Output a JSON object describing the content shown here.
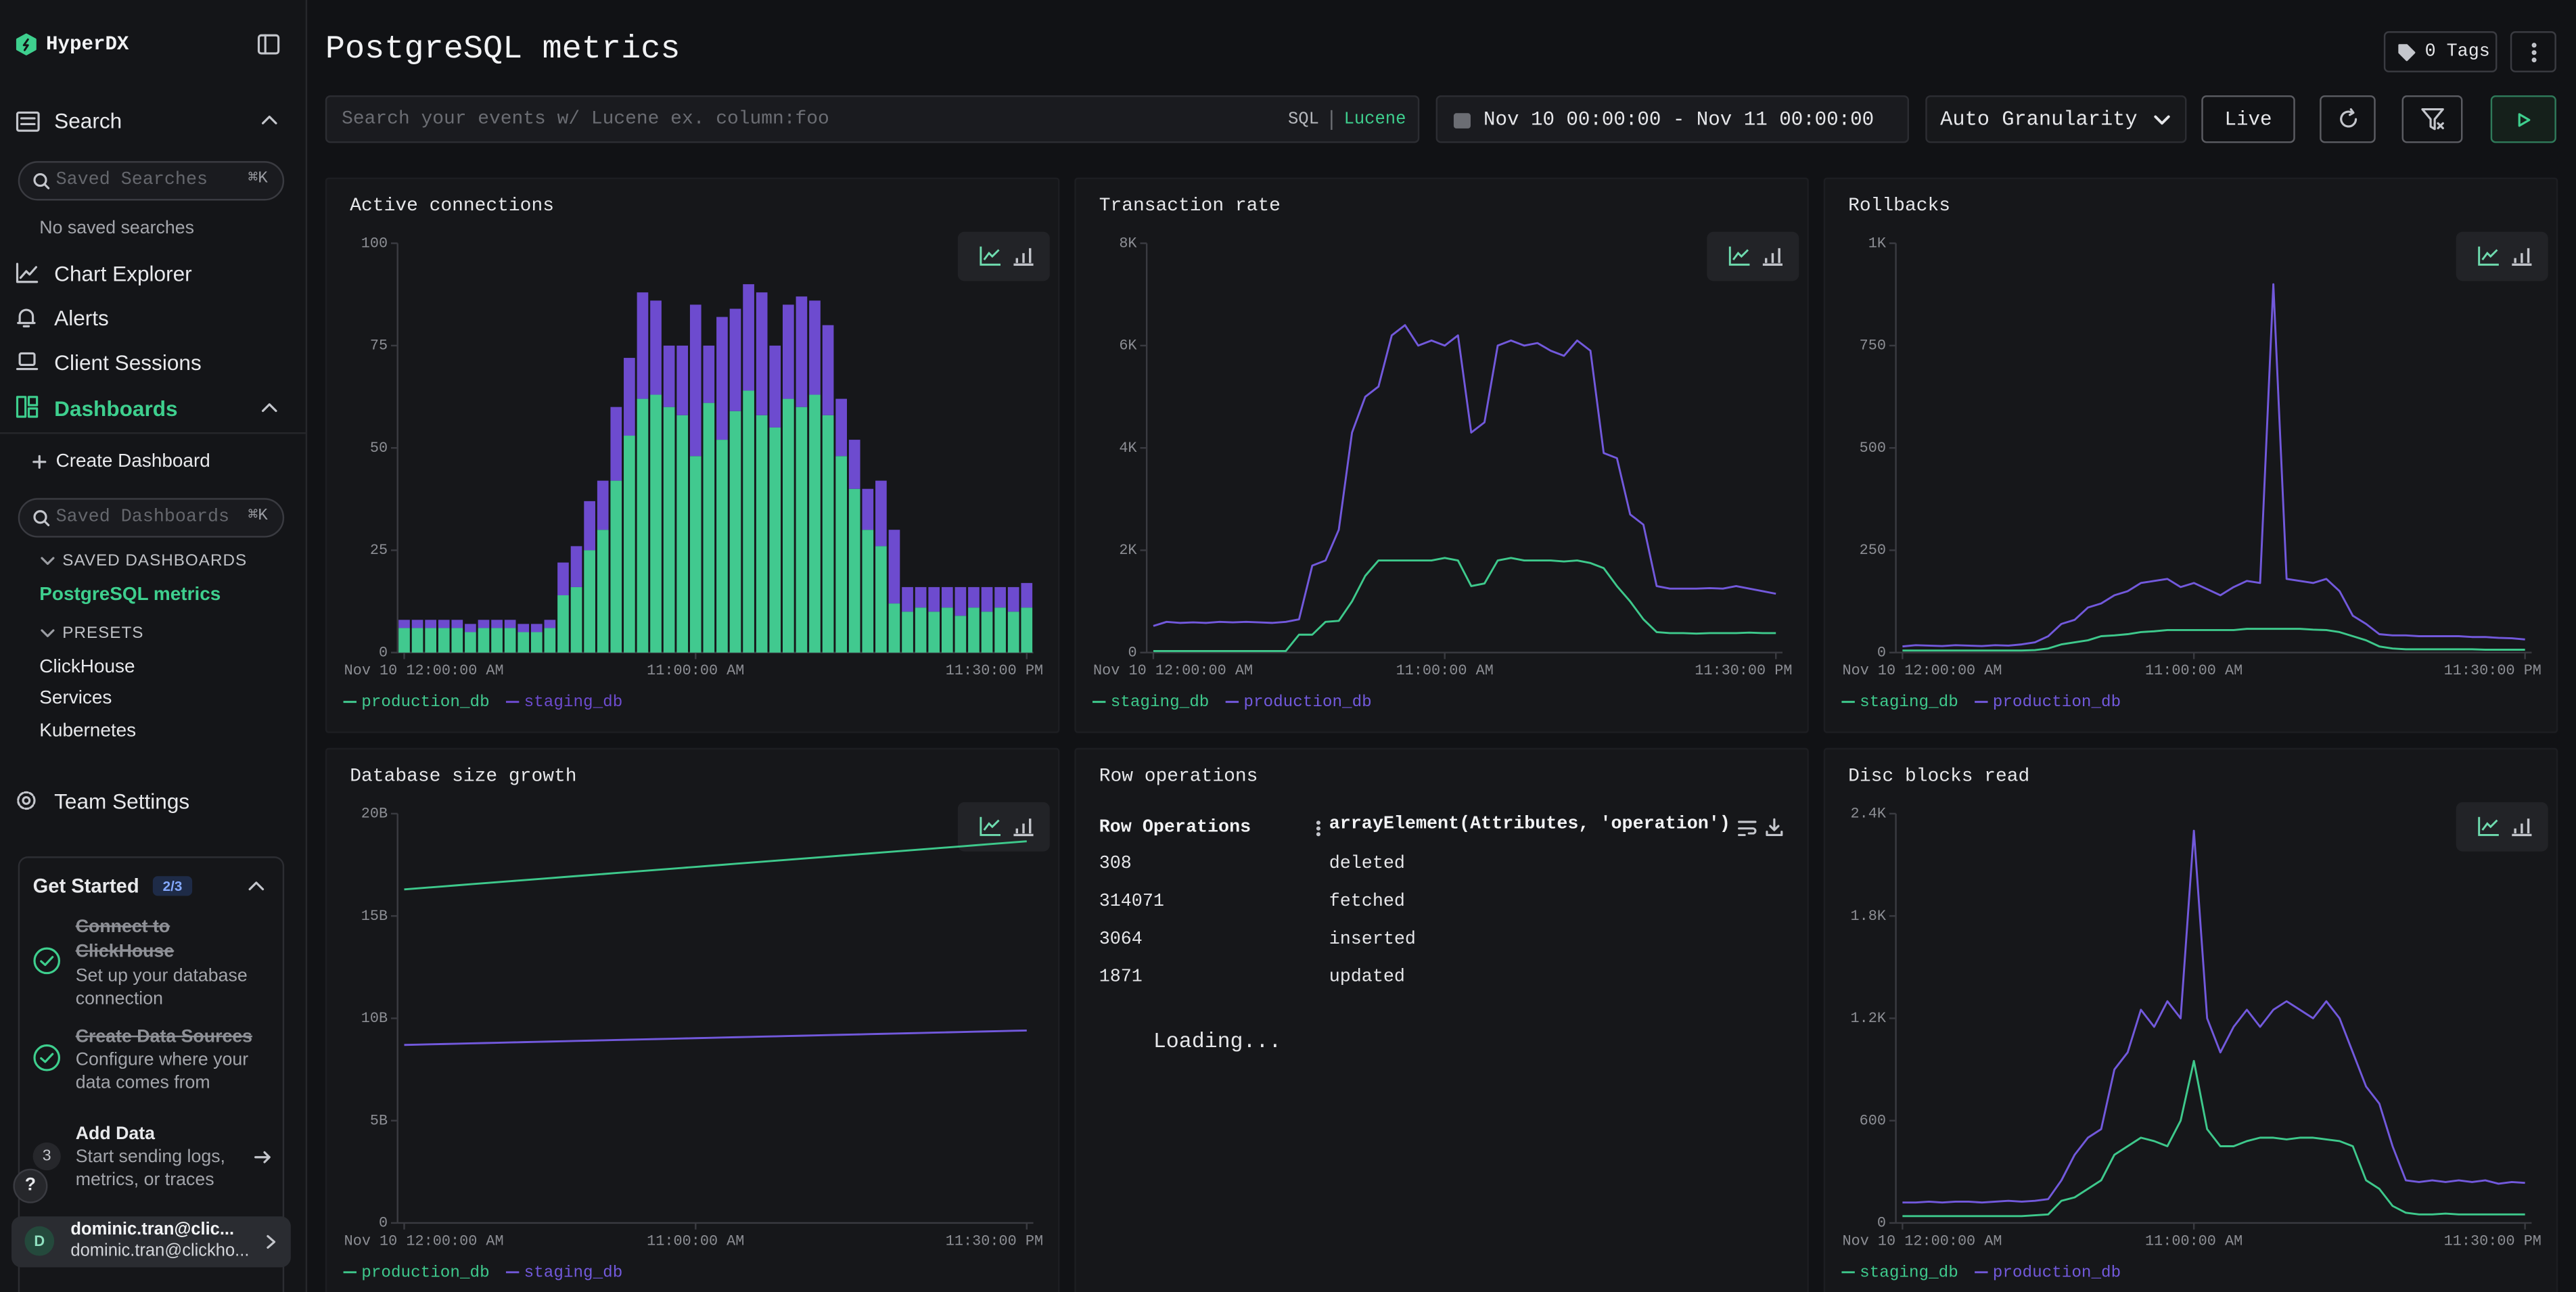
{
  "sidebar": {
    "brand": "HyperDX",
    "search": "Search",
    "saved_searches_placeholder": "Saved Searches",
    "shortcut": "⌘K",
    "no_saved_searches": "No saved searches",
    "nav": [
      "Chart Explorer",
      "Alerts",
      "Client Sessions"
    ],
    "dashboards": "Dashboards",
    "create_dashboard": "Create Dashboard",
    "saved_dashboards_placeholder": "Saved Dashboards",
    "saved_dashboards_heading": "SAVED DASHBOARDS",
    "saved_dashboards": [
      "PostgreSQL metrics"
    ],
    "presets_heading": "PRESETS",
    "presets": [
      "ClickHouse",
      "Services",
      "Kubernetes"
    ],
    "team_settings": "Team Settings",
    "get_started": {
      "title": "Get Started",
      "progress": "2/3",
      "steps": [
        {
          "title": "Connect to ClickHouse",
          "description": "Set up your database connection",
          "done": true
        },
        {
          "title": "Create Data Sources",
          "description": "Configure where your data comes from",
          "done": true
        },
        {
          "number": 3,
          "title": "Add Data",
          "description": "Start sending logs, metrics, or traces",
          "done": false
        }
      ]
    },
    "help": "?",
    "user": {
      "initial": "D",
      "name": "dominic.tran@clic...",
      "email": "dominic.tran@clickho..."
    }
  },
  "header": {
    "title": "PostgreSQL metrics",
    "tags": "0 Tags",
    "search_placeholder": "Search your events w/ Lucene ex. column:foo",
    "query_languages": [
      "SQL",
      "Lucene"
    ],
    "time_range": "Nov 10 00:00:00 - Nov 11 00:00:00",
    "granularity": "Auto Granularity",
    "live": "Live"
  },
  "chart_data": [
    {
      "type": "bar",
      "stacked": true,
      "title": "Active connections",
      "categories": [
        "Nov 10 12:00:00 AM",
        null,
        null,
        null,
        null,
        null,
        null,
        null,
        null,
        null,
        null,
        null,
        null,
        null,
        null,
        null,
        null,
        null,
        null,
        null,
        null,
        null,
        "11:00:00 AM",
        null,
        null,
        null,
        null,
        null,
        null,
        null,
        null,
        null,
        null,
        null,
        null,
        null,
        null,
        null,
        null,
        null,
        null,
        null,
        null,
        null,
        null,
        null,
        null,
        "11:30:00 PM"
      ],
      "ylim": [
        0,
        100
      ],
      "yticks": [
        0,
        25,
        50,
        75,
        100
      ],
      "series": [
        {
          "name": "production_db",
          "color": "#41c98f",
          "values": [
            6,
            6,
            6,
            6,
            6,
            5,
            6,
            6,
            6,
            5,
            5,
            6,
            14,
            16,
            25,
            30,
            42,
            53,
            62,
            63,
            60,
            58,
            48,
            61,
            52,
            59,
            64,
            58,
            55,
            62,
            60,
            63,
            58,
            48,
            40,
            30,
            26,
            12,
            10,
            11,
            10,
            11,
            9,
            11,
            10,
            11,
            10,
            11
          ]
        },
        {
          "name": "staging_db",
          "color": "#6d4bcf",
          "values": [
            2,
            2,
            2,
            2,
            2,
            2,
            2,
            2,
            2,
            2,
            2,
            2,
            8,
            10,
            12,
            12,
            18,
            19,
            26,
            23,
            15,
            17,
            37,
            14,
            30,
            25,
            26,
            30,
            20,
            23,
            27,
            23,
            22,
            14,
            12,
            10,
            16,
            18,
            6,
            5,
            6,
            5,
            7,
            5,
            6,
            5,
            6,
            6
          ]
        }
      ]
    },
    {
      "type": "line",
      "title": "Transaction rate",
      "categories": [
        "Nov 10 12:00:00 AM",
        null,
        null,
        null,
        null,
        null,
        null,
        null,
        null,
        null,
        null,
        null,
        null,
        null,
        null,
        null,
        null,
        null,
        null,
        null,
        null,
        null,
        "11:00:00 AM",
        null,
        null,
        null,
        null,
        null,
        null,
        null,
        null,
        null,
        null,
        null,
        null,
        null,
        null,
        null,
        null,
        null,
        null,
        null,
        null,
        null,
        null,
        null,
        null,
        "11:30:00 PM"
      ],
      "ylim": [
        0,
        8000
      ],
      "yticks": [
        0,
        {
          "value": 2000,
          "label": "2K"
        },
        {
          "value": 4000,
          "label": "4K"
        },
        {
          "value": 6000,
          "label": "6K"
        },
        {
          "value": 8000,
          "label": "8K"
        }
      ],
      "series": [
        {
          "name": "staging_db",
          "color": "#3ec98c",
          "values": [
            30,
            30,
            30,
            30,
            30,
            30,
            30,
            30,
            30,
            30,
            30,
            350,
            350,
            600,
            620,
            1000,
            1500,
            1800,
            1800,
            1800,
            1800,
            1800,
            1850,
            1800,
            1300,
            1350,
            1800,
            1850,
            1800,
            1800,
            1800,
            1780,
            1800,
            1750,
            1650,
            1300,
            1000,
            650,
            400,
            380,
            380,
            370,
            380,
            380,
            380,
            390,
            380,
            380
          ]
        },
        {
          "name": "production_db",
          "color": "#7259dc",
          "values": [
            520,
            600,
            580,
            590,
            580,
            600,
            590,
            600,
            590,
            580,
            600,
            650,
            1700,
            1800,
            2400,
            4300,
            5000,
            5200,
            6200,
            6400,
            6000,
            6100,
            6000,
            6200,
            4300,
            4500,
            6000,
            6100,
            6000,
            6050,
            5900,
            5800,
            6100,
            5900,
            3900,
            3800,
            2700,
            2500,
            1300,
            1250,
            1250,
            1250,
            1260,
            1250,
            1300,
            1250,
            1200,
            1150
          ]
        }
      ]
    },
    {
      "type": "line",
      "title": "Rollbacks",
      "categories": [
        "Nov 10 12:00:00 AM",
        null,
        null,
        null,
        null,
        null,
        null,
        null,
        null,
        null,
        null,
        null,
        null,
        null,
        null,
        null,
        null,
        null,
        null,
        null,
        null,
        null,
        "11:00:00 AM",
        null,
        null,
        null,
        null,
        null,
        null,
        null,
        null,
        null,
        null,
        null,
        null,
        null,
        null,
        null,
        null,
        null,
        null,
        null,
        null,
        null,
        null,
        null,
        null,
        "11:30:00 PM"
      ],
      "ylim": [
        0,
        1000
      ],
      "yticks": [
        0,
        250,
        500,
        750,
        {
          "value": 1000,
          "label": "1K"
        }
      ],
      "series": [
        {
          "name": "staging_db",
          "color": "#3ec98c",
          "values": [
            5,
            5,
            5,
            5,
            5,
            5,
            5,
            5,
            5,
            5,
            6,
            10,
            20,
            25,
            30,
            40,
            42,
            45,
            50,
            52,
            55,
            55,
            55,
            55,
            55,
            55,
            58,
            58,
            58,
            58,
            58,
            56,
            55,
            50,
            40,
            30,
            15,
            10,
            8,
            8,
            8,
            8,
            8,
            8,
            7,
            7,
            7,
            7
          ]
        },
        {
          "name": "production_db",
          "color": "#7259dc",
          "values": [
            15,
            18,
            17,
            16,
            18,
            17,
            16,
            18,
            17,
            20,
            25,
            40,
            70,
            80,
            110,
            120,
            140,
            150,
            170,
            175,
            180,
            160,
            170,
            155,
            140,
            160,
            175,
            170,
            900,
            180,
            175,
            170,
            180,
            150,
            90,
            70,
            45,
            42,
            42,
            40,
            40,
            40,
            40,
            38,
            38,
            36,
            35,
            32
          ]
        }
      ]
    },
    {
      "type": "line",
      "title": "Database size growth",
      "categories": [
        "Nov 10 12:00:00 AM",
        null,
        null,
        null,
        null,
        null,
        null,
        null,
        null,
        null,
        null,
        null,
        null,
        null,
        null,
        null,
        null,
        null,
        null,
        null,
        null,
        null,
        "11:00:00 AM",
        null,
        null,
        null,
        null,
        null,
        null,
        null,
        null,
        null,
        null,
        null,
        null,
        null,
        null,
        null,
        null,
        null,
        null,
        null,
        null,
        null,
        null,
        null,
        null,
        "11:30:00 PM"
      ],
      "ylim": [
        0,
        20
      ],
      "yticks": [
        0,
        {
          "value": 5,
          "label": "5B"
        },
        {
          "value": 10,
          "label": "10B"
        },
        {
          "value": 15,
          "label": "15B"
        },
        {
          "value": 20,
          "label": "20B"
        }
      ],
      "series": [
        {
          "name": "production_db",
          "color": "#3ec98c",
          "values": [
            16.3,
            16.35,
            16.4,
            16.45,
            16.5,
            16.55,
            16.6,
            16.65,
            16.7,
            16.75,
            16.8,
            16.85,
            16.9,
            16.95,
            17,
            17.05,
            17.1,
            17.15,
            17.2,
            17.25,
            17.3,
            17.35,
            17.4,
            17.45,
            17.5,
            17.55,
            17.6,
            17.65,
            17.7,
            17.75,
            17.8,
            17.85,
            17.9,
            17.95,
            18,
            18.05,
            18.1,
            18.15,
            18.2,
            18.25,
            18.3,
            18.35,
            18.4,
            18.45,
            18.5,
            18.55,
            18.6,
            18.65
          ]
        },
        {
          "name": "staging_db",
          "color": "#7259dc",
          "values": [
            8.7,
            8.715,
            8.73,
            8.745,
            8.76,
            8.775,
            8.79,
            8.805,
            8.82,
            8.835,
            8.85,
            8.865,
            8.88,
            8.895,
            8.91,
            8.925,
            8.94,
            8.955,
            8.97,
            8.985,
            9,
            9.015,
            9.03,
            9.045,
            9.06,
            9.075,
            9.09,
            9.105,
            9.12,
            9.135,
            9.15,
            9.165,
            9.18,
            9.195,
            9.21,
            9.225,
            9.24,
            9.255,
            9.27,
            9.285,
            9.3,
            9.315,
            9.33,
            9.345,
            9.36,
            9.375,
            9.39,
            9.405
          ]
        }
      ]
    },
    {
      "type": "line",
      "title": "Disc blocks read",
      "categories": [
        "Nov 10 12:00:00 AM",
        null,
        null,
        null,
        null,
        null,
        null,
        null,
        null,
        null,
        null,
        null,
        null,
        null,
        null,
        null,
        null,
        null,
        null,
        null,
        null,
        null,
        "11:00:00 AM",
        null,
        null,
        null,
        null,
        null,
        null,
        null,
        null,
        null,
        null,
        null,
        null,
        null,
        null,
        null,
        null,
        null,
        null,
        null,
        null,
        null,
        null,
        null,
        null,
        "11:30:00 PM"
      ],
      "ylim": [
        0,
        2400
      ],
      "yticks": [
        0,
        600,
        {
          "value": 1200,
          "label": "1.2K"
        },
        {
          "value": 1800,
          "label": "1.8K"
        },
        {
          "value": 2400,
          "label": "2.4K"
        }
      ],
      "series": [
        {
          "name": "staging_db",
          "color": "#3ec98c",
          "values": [
            40,
            40,
            40,
            40,
            40,
            40,
            40,
            40,
            40,
            40,
            45,
            50,
            130,
            150,
            200,
            250,
            400,
            450,
            500,
            480,
            450,
            600,
            950,
            550,
            450,
            450,
            480,
            500,
            500,
            490,
            500,
            500,
            490,
            480,
            450,
            250,
            200,
            100,
            60,
            50,
            50,
            55,
            50,
            50,
            50,
            50,
            50,
            50
          ]
        },
        {
          "name": "production_db",
          "color": "#7259dc",
          "values": [
            120,
            120,
            125,
            120,
            125,
            125,
            120,
            125,
            130,
            125,
            130,
            140,
            250,
            400,
            500,
            550,
            900,
            1000,
            1250,
            1150,
            1300,
            1200,
            2300,
            1200,
            1000,
            1150,
            1250,
            1150,
            1250,
            1300,
            1250,
            1200,
            1300,
            1200,
            1000,
            800,
            700,
            450,
            250,
            240,
            250,
            240,
            250,
            240,
            250,
            230,
            240,
            235
          ]
        }
      ]
    }
  ],
  "row_operations": {
    "title": "Row operations",
    "columns": [
      "Row Operations",
      "arrayElement(Attributes, 'operation')"
    ],
    "rows": [
      [
        308,
        "deleted"
      ],
      [
        314071,
        "fetched"
      ],
      [
        3064,
        "inserted"
      ],
      [
        1871,
        "updated"
      ]
    ],
    "status": "Loading..."
  }
}
